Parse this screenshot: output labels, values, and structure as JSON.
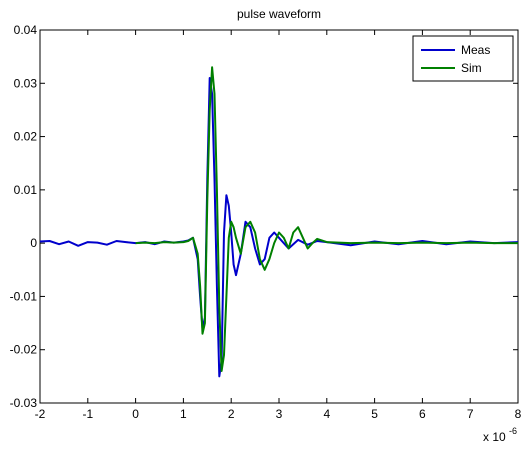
{
  "chart_data": {
    "type": "line",
    "title": "pulse waveform",
    "xlabel": "",
    "ylabel": "",
    "xlim": [
      -2,
      8
    ],
    "ylim": [
      -0.03,
      0.04
    ],
    "x_scale_label": "x 10",
    "x_scale_exponent": "-6",
    "x_ticks": [
      -2,
      -1,
      0,
      1,
      2,
      3,
      4,
      5,
      6,
      7,
      8
    ],
    "x_tick_labels": [
      "-2",
      "-1",
      "0",
      "1",
      "2",
      "3",
      "4",
      "5",
      "6",
      "7",
      "8"
    ],
    "y_ticks": [
      -0.03,
      -0.02,
      -0.01,
      0,
      0.01,
      0.02,
      0.03,
      0.04
    ],
    "y_tick_labels": [
      "-0.03",
      "-0.02",
      "-0.01",
      "0",
      "0.01",
      "0.02",
      "0.03",
      "0.04"
    ],
    "grid": false,
    "legend_position": "top-right",
    "series": [
      {
        "name": "Meas",
        "color": "#0000cc",
        "x": [
          -2.0,
          -1.8,
          -1.6,
          -1.4,
          -1.2,
          -1.0,
          -0.8,
          -0.6,
          -0.4,
          -0.2,
          0.0,
          0.2,
          0.4,
          0.6,
          0.8,
          1.0,
          1.1,
          1.2,
          1.3,
          1.35,
          1.4,
          1.45,
          1.5,
          1.55,
          1.6,
          1.65,
          1.7,
          1.75,
          1.8,
          1.85,
          1.9,
          1.95,
          2.0,
          2.05,
          2.1,
          2.2,
          2.3,
          2.4,
          2.5,
          2.6,
          2.7,
          2.8,
          2.9,
          3.0,
          3.2,
          3.4,
          3.6,
          3.8,
          4.0,
          4.5,
          5.0,
          5.5,
          6.0,
          6.5,
          7.0,
          7.5,
          8.0
        ],
        "y": [
          0.0003,
          0.0004,
          -0.0002,
          0.0003,
          -0.0005,
          0.0002,
          0.0001,
          -0.0003,
          0.0004,
          0.0002,
          0.0,
          0.0002,
          -0.0002,
          0.0003,
          0.0001,
          0.0003,
          0.0005,
          0.001,
          -0.003,
          -0.01,
          -0.016,
          -0.014,
          0.012,
          0.031,
          0.028,
          0.012,
          -0.008,
          -0.025,
          -0.022,
          0.002,
          0.009,
          0.007,
          0.002,
          -0.004,
          -0.006,
          -0.002,
          0.004,
          0.003,
          -0.001,
          -0.004,
          -0.003,
          0.001,
          0.002,
          0.001,
          -0.001,
          0.0006,
          -0.0003,
          0.0004,
          0.0002,
          -0.0004,
          0.0003,
          -0.0002,
          0.0004,
          -0.0002,
          0.0003,
          0.0,
          0.0002
        ]
      },
      {
        "name": "Sim",
        "color": "#008000",
        "x": [
          0.0,
          0.2,
          0.4,
          0.6,
          0.8,
          1.0,
          1.1,
          1.2,
          1.3,
          1.35,
          1.4,
          1.45,
          1.5,
          1.55,
          1.6,
          1.65,
          1.7,
          1.75,
          1.8,
          1.85,
          1.9,
          1.95,
          2.0,
          2.05,
          2.1,
          2.2,
          2.3,
          2.4,
          2.5,
          2.6,
          2.7,
          2.8,
          2.9,
          3.0,
          3.1,
          3.2,
          3.3,
          3.4,
          3.5,
          3.6,
          3.7,
          3.8,
          4.0,
          4.5,
          5.0,
          5.5,
          6.0,
          6.5,
          7.0,
          7.5,
          8.0
        ],
        "y": [
          0.0,
          0.0001,
          0.0,
          0.0002,
          0.0001,
          0.0002,
          0.0004,
          0.001,
          -0.002,
          -0.008,
          -0.017,
          -0.015,
          0.008,
          0.025,
          0.033,
          0.028,
          0.01,
          -0.012,
          -0.024,
          -0.021,
          -0.01,
          0.001,
          0.004,
          0.003,
          0.001,
          -0.002,
          0.003,
          0.004,
          0.002,
          -0.003,
          -0.005,
          -0.003,
          0.0,
          0.002,
          0.001,
          -0.001,
          0.002,
          0.003,
          0.001,
          -0.001,
          0.0,
          0.0008,
          0.0002,
          0.0,
          0.0001,
          0.0,
          0.0001,
          0.0,
          0.0001,
          0.0,
          0.0
        ]
      }
    ]
  }
}
